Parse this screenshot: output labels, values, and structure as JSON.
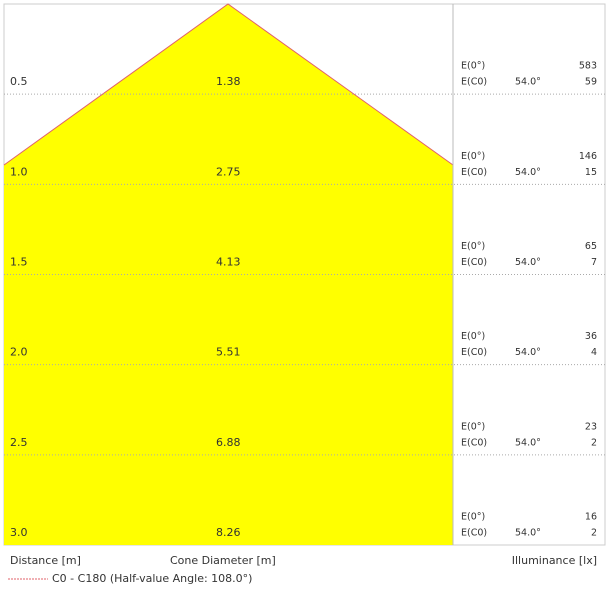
{
  "rows": [
    {
      "distance": "0.5",
      "diameter": "1.38",
      "e0_label": "E(0°)",
      "ec0_label": "E(C0)",
      "angle": "54.0°",
      "e0": "583",
      "ec0": "59"
    },
    {
      "distance": "1.0",
      "diameter": "2.75",
      "e0_label": "E(0°)",
      "ec0_label": "E(C0)",
      "angle": "54.0°",
      "e0": "146",
      "ec0": "15"
    },
    {
      "distance": "1.5",
      "diameter": "4.13",
      "e0_label": "E(0°)",
      "ec0_label": "E(C0)",
      "angle": "54.0°",
      "e0": "65",
      "ec0": "7"
    },
    {
      "distance": "2.0",
      "diameter": "5.51",
      "e0_label": "E(0°)",
      "ec0_label": "E(C0)",
      "angle": "54.0°",
      "e0": "36",
      "ec0": "4"
    },
    {
      "distance": "2.5",
      "diameter": "6.88",
      "e0_label": "E(0°)",
      "ec0_label": "E(C0)",
      "angle": "54.0°",
      "e0": "23",
      "ec0": "2"
    },
    {
      "distance": "3.0",
      "diameter": "8.26",
      "e0_label": "E(0°)",
      "ec0_label": "E(C0)",
      "angle": "54.0°",
      "e0": "16",
      "ec0": "2"
    }
  ],
  "footer": {
    "distance_label": "Distance [m]",
    "diameter_label": "Cone Diameter [m]",
    "illuminance_label": "Illuminance [lx]"
  },
  "legend": {
    "text": "C0 - C180 (Half-value Angle: 108.0°)"
  }
}
